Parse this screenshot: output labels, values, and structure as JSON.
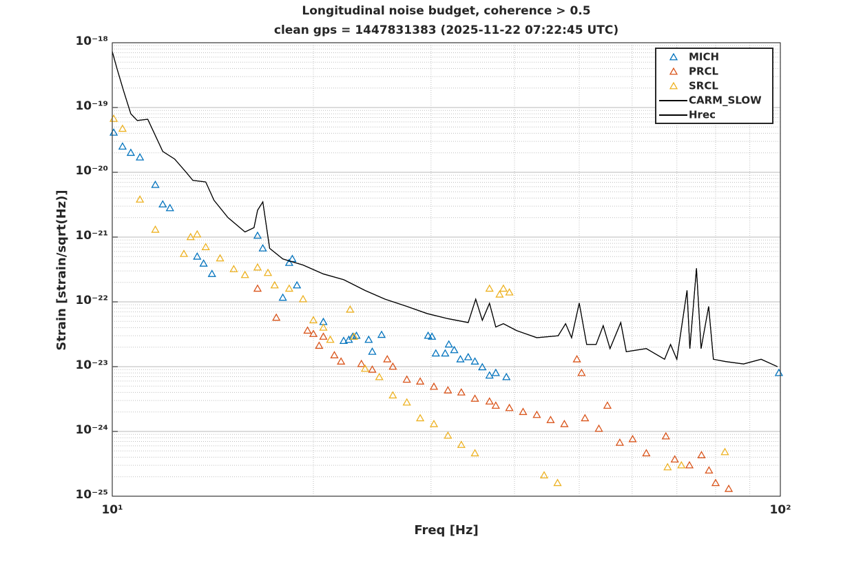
{
  "chart_data": {
    "type": "scatter",
    "title": [
      "Longitudinal noise budget, coherence > 0.5",
      "clean gps = 1447831383 (2025-11-22 07:22:45 UTC)"
    ],
    "xlabel": "Freq [Hz]",
    "ylabel": "Strain [strain/sqrt(Hz)]",
    "xscale": "log",
    "yscale": "log",
    "xlim": [
      10,
      100
    ],
    "ylim": [
      1e-25,
      1e-18
    ],
    "xticks": [
      {
        "value": 10,
        "label": "10¹"
      },
      {
        "value": 100,
        "label": "10²"
      }
    ],
    "yticks": [
      {
        "value": 1e-25,
        "label": "10⁻²⁵"
      },
      {
        "value": 1e-24,
        "label": "10⁻²⁴"
      },
      {
        "value": 1e-23,
        "label": "10⁻²³"
      },
      {
        "value": 1e-22,
        "label": "10⁻²²"
      },
      {
        "value": 1e-21,
        "label": "10⁻²¹"
      },
      {
        "value": 1e-20,
        "label": "10⁻²⁰"
      },
      {
        "value": 1e-19,
        "label": "10⁻¹⁹"
      },
      {
        "value": 1e-18,
        "label": "10⁻¹⁸"
      }
    ],
    "grid": true,
    "minor_grid": true,
    "legend": "upper right",
    "series": [
      {
        "name": "MICH",
        "color": "#0072BD",
        "kind": "markers",
        "x": [
          10.05,
          10.36,
          10.66,
          11.0,
          11.6,
          11.9,
          12.2,
          13.4,
          13.7,
          14.1,
          16.5,
          16.8,
          18.0,
          18.4,
          18.6,
          18.9,
          20.7,
          22.2,
          22.6,
          22.9,
          23.2,
          24.2,
          24.5,
          25.3,
          29.7,
          30.1,
          30.5,
          31.5,
          31.9,
          32.5,
          33.2,
          34.1,
          34.9,
          35.8,
          36.7,
          37.5,
          38.9,
          99.5
        ],
        "values": [
          4.1e-20,
          2.5e-20,
          2e-20,
          1.7e-20,
          6.4e-21,
          3.2e-21,
          2.8e-21,
          5e-22,
          3.9e-22,
          2.7e-22,
          1.05e-21,
          6.7e-22,
          1.16e-22,
          4e-22,
          4.6e-22,
          1.8e-22,
          4.9e-23,
          2.5e-23,
          2.6e-23,
          2.9e-23,
          3e-23,
          2.6e-23,
          1.7e-23,
          3.1e-23,
          3e-23,
          2.9e-23,
          1.6e-23,
          1.6e-23,
          2.2e-23,
          1.8e-23,
          1.3e-23,
          1.4e-23,
          1.2e-23,
          9.8e-24,
          7.3e-24,
          8e-24,
          6.9e-24,
          8e-24
        ]
      },
      {
        "name": "PRCL",
        "color": "#D95319",
        "kind": "markers",
        "x": [
          16.5,
          17.6,
          19.6,
          20.0,
          20.4,
          20.7,
          21.5,
          22.0,
          23.6,
          24.5,
          25.8,
          26.3,
          27.6,
          28.9,
          30.3,
          31.8,
          33.3,
          34.9,
          36.7,
          37.5,
          39.3,
          41.2,
          43.2,
          45.3,
          47.5,
          49.6,
          50.4,
          51.0,
          53.5,
          55.1,
          57.5,
          60.1,
          63.0,
          67.4,
          69.5,
          73.1,
          76.2,
          78.2,
          80.0,
          83.7
        ],
        "values": [
          1.6e-22,
          5.7e-23,
          3.6e-23,
          3.2e-23,
          2.1e-23,
          2.9e-23,
          1.5e-23,
          1.2e-23,
          1.1e-23,
          9e-24,
          1.3e-23,
          1e-23,
          6.3e-24,
          5.9e-24,
          4.9e-24,
          4.3e-24,
          4e-24,
          3.2e-24,
          2.9e-24,
          2.5e-24,
          2.3e-24,
          2e-24,
          1.8e-24,
          1.5e-24,
          1.3e-24,
          1.3e-23,
          8e-24,
          1.6e-24,
          1.1e-24,
          2.5e-24,
          6.7e-25,
          7.6e-25,
          4.6e-25,
          8.4e-25,
          3.7e-25,
          3e-25,
          4.3e-25,
          2.5e-25,
          1.6e-25,
          1.3e-25
        ]
      },
      {
        "name": "SRCL",
        "color": "#EDB120",
        "kind": "markers",
        "x": [
          10.05,
          10.36,
          11.0,
          11.6,
          12.8,
          13.1,
          13.4,
          13.8,
          14.5,
          15.2,
          15.8,
          16.5,
          17.1,
          17.5,
          18.4,
          19.3,
          20.0,
          20.7,
          21.2,
          22.7,
          23.0,
          23.9,
          25.1,
          26.3,
          27.6,
          28.9,
          30.3,
          31.8,
          33.3,
          34.9,
          36.7,
          38.0,
          38.5,
          39.3,
          44.3,
          46.4,
          67.8,
          71.1,
          82.6
        ],
        "values": [
          6.7e-20,
          4.7e-20,
          3.8e-21,
          1.3e-21,
          5.5e-22,
          1e-21,
          1.1e-21,
          7e-22,
          4.7e-22,
          3.2e-22,
          2.6e-22,
          3.4e-22,
          2.8e-22,
          1.8e-22,
          1.6e-22,
          1.1e-22,
          5.2e-23,
          4e-23,
          2.6e-23,
          7.6e-23,
          2.9e-23,
          9.3e-24,
          6.9e-24,
          3.6e-24,
          2.8e-24,
          1.6e-24,
          1.3e-24,
          8.6e-25,
          6.2e-25,
          4.6e-25,
          1.6e-22,
          1.3e-22,
          1.6e-22,
          1.4e-22,
          2.1e-25,
          1.6e-25,
          2.8e-25,
          3e-25,
          4.8e-25
        ]
      },
      {
        "name": "CARM_SLOW",
        "color": "#000000",
        "kind": "line",
        "x": [
          10.0,
          10.17,
          10.4,
          10.66,
          10.9,
          11.3,
          11.9,
          12.4,
          12.9,
          13.2,
          13.8,
          14.2,
          14.9,
          15.8,
          16.3,
          16.5,
          16.8,
          17.2,
          18.0,
          19.3,
          20.7,
          22.2,
          23.9,
          25.6,
          27.6,
          29.6,
          31.8,
          34.1,
          35.0,
          35.8,
          36.7,
          37.5,
          38.5,
          40.3,
          43.2,
          46.5,
          47.7,
          48.7,
          50.0,
          51.3,
          53.0,
          54.3,
          55.6,
          57.7,
          58.8,
          63.0,
          67.1,
          68.5,
          70.0,
          72.5,
          73.2,
          74.9,
          76.1,
          78.1,
          79.4,
          82.8,
          88.1,
          93.6,
          99.0
        ],
        "values": [
          7.3e-19,
          3.9e-19,
          1.8e-19,
          8e-20,
          6.3e-20,
          6.6e-20,
          2.1e-20,
          1.6e-20,
          1e-20,
          7.5e-21,
          7.1e-21,
          3.7e-21,
          2e-21,
          1.2e-21,
          1.4e-21,
          2.6e-21,
          3.5e-21,
          6.7e-22,
          4.6e-22,
          3.7e-22,
          2.7e-22,
          2.2e-22,
          1.5e-22,
          1.1e-22,
          8.5e-23,
          6.6e-23,
          5.5e-23,
          4.8e-23,
          1.1e-22,
          5.2e-23,
          9.5e-23,
          4.1e-23,
          4.6e-23,
          3.6e-23,
          2.8e-23,
          3e-23,
          4.6e-23,
          2.8e-23,
          9.6e-23,
          2.2e-23,
          2.2e-23,
          4.3e-23,
          1.9e-23,
          4.8e-23,
          1.7e-23,
          1.9e-23,
          1.3e-23,
          2.2e-23,
          1.3e-23,
          1.5e-22,
          1.9e-23,
          3.3e-22,
          1.9e-23,
          8.5e-23,
          1.3e-23,
          1.2e-23,
          1.1e-23,
          1.3e-23,
          1e-23
        ]
      },
      {
        "name": "Hrec",
        "color": "#000000",
        "kind": "line",
        "x": [
          10.0,
          10.17,
          10.4,
          10.66,
          10.9,
          11.3,
          11.9,
          12.4,
          12.9,
          13.2,
          13.8,
          14.2,
          14.9,
          15.8,
          16.3,
          16.5,
          16.8,
          17.2,
          18.0,
          19.3,
          20.7,
          22.2,
          23.9,
          25.6,
          27.6,
          29.6,
          31.8,
          34.1,
          35.0,
          35.8,
          36.7,
          37.5,
          38.5,
          40.3,
          43.2,
          46.5,
          47.7,
          48.7,
          50.0,
          51.3,
          53.0,
          54.3,
          55.6,
          57.7,
          58.8,
          63.0,
          67.1,
          68.5,
          70.0,
          72.5,
          73.2,
          74.9,
          76.1,
          78.1,
          79.4,
          82.8,
          88.1,
          93.6,
          99.0
        ],
        "values": [
          7.3e-19,
          3.9e-19,
          1.8e-19,
          8e-20,
          6.3e-20,
          6.6e-20,
          2.1e-20,
          1.6e-20,
          1e-20,
          7.5e-21,
          7.1e-21,
          3.7e-21,
          2e-21,
          1.2e-21,
          1.4e-21,
          2.6e-21,
          3.5e-21,
          6.7e-22,
          4.6e-22,
          3.7e-22,
          2.7e-22,
          2.2e-22,
          1.5e-22,
          1.1e-22,
          8.5e-23,
          6.6e-23,
          5.5e-23,
          4.8e-23,
          1.1e-22,
          5.2e-23,
          9.5e-23,
          4.1e-23,
          4.6e-23,
          3.6e-23,
          2.8e-23,
          3e-23,
          4.6e-23,
          2.8e-23,
          9.6e-23,
          2.2e-23,
          2.2e-23,
          4.3e-23,
          1.9e-23,
          4.8e-23,
          1.7e-23,
          1.9e-23,
          1.3e-23,
          2.2e-23,
          1.3e-23,
          1.5e-22,
          1.9e-23,
          3.3e-22,
          1.9e-23,
          8.5e-23,
          1.3e-23,
          1.2e-23,
          1.1e-23,
          1.3e-23,
          1e-23
        ]
      }
    ]
  }
}
